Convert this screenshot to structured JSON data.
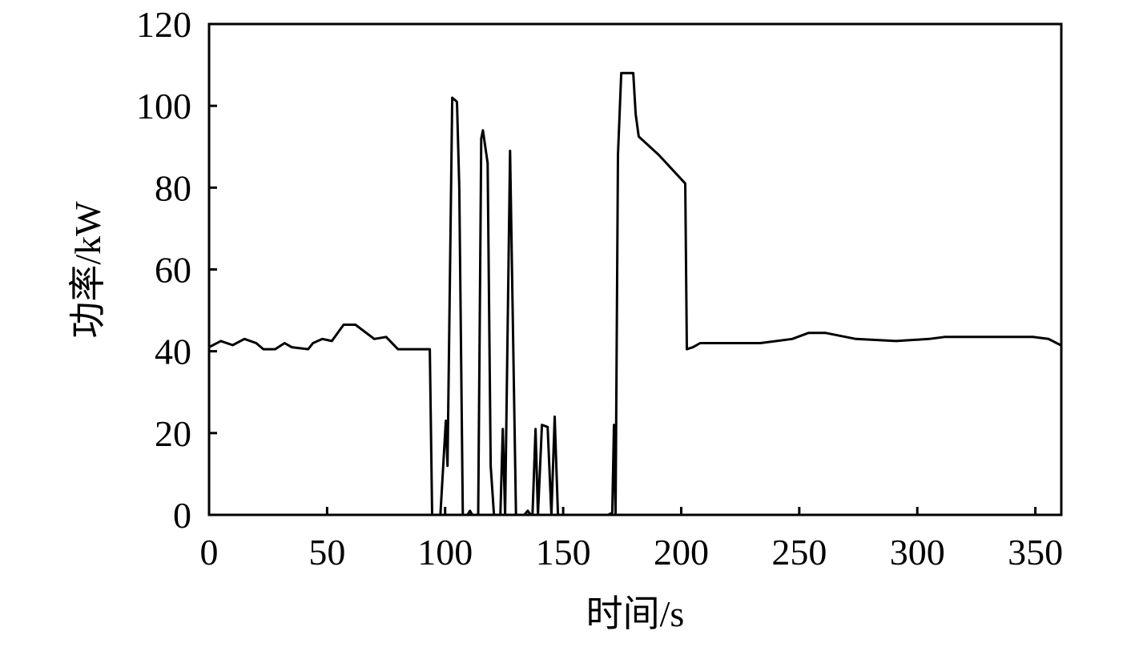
{
  "chart_data": {
    "type": "line",
    "xlabel": "时间/s",
    "ylabel": "功率/kW",
    "xlim": [
      0,
      361
    ],
    "ylim": [
      0,
      120
    ],
    "xticks": [
      0,
      50,
      100,
      150,
      200,
      250,
      300,
      350
    ],
    "yticks": [
      0,
      20,
      40,
      60,
      80,
      100,
      120
    ],
    "color": "#000000",
    "x": [
      0,
      5,
      10,
      15,
      20,
      23,
      28,
      32,
      35,
      42,
      44,
      48,
      52,
      57,
      62,
      70,
      75,
      80,
      88,
      93.5,
      94.5,
      98,
      100.3,
      101,
      103,
      105,
      106,
      107.5,
      109.5,
      110.5,
      111.5,
      114,
      115.3,
      116,
      118,
      119.3,
      120.7,
      123.4,
      124.4,
      125.4,
      127.5,
      129,
      130,
      133.5,
      135,
      136.3,
      137,
      138.3,
      139.3,
      141,
      143.4,
      145,
      146.4,
      147.8,
      169,
      170.8,
      171.5,
      172.2,
      173.2,
      174.6,
      179.7,
      180.7,
      182,
      190.5,
      201.7,
      202.4,
      205,
      208,
      216.6,
      233.5,
      247,
      254,
      261,
      274,
      291,
      305,
      311.5,
      332,
      349,
      355.6,
      360.7
    ],
    "values": [
      41,
      42.5,
      41.5,
      43,
      42,
      40.5,
      40.5,
      42,
      41,
      40.5,
      42,
      43,
      42.5,
      46.5,
      46.5,
      43,
      43.5,
      40.5,
      40.5,
      40.5,
      0,
      0,
      23,
      12,
      102,
      101,
      80,
      0,
      0,
      1,
      0,
      0,
      92,
      94,
      86,
      12,
      0,
      0,
      21,
      0,
      89,
      36,
      0,
      0,
      1,
      0,
      0,
      21,
      0,
      22,
      21.5,
      0,
      24,
      0,
      0,
      0.5,
      22,
      0,
      88,
      108,
      108,
      98,
      92.5,
      88,
      81,
      40.5,
      41,
      42,
      42,
      42,
      43,
      44.5,
      44.5,
      43,
      42.5,
      43,
      43.5,
      43.5,
      43.5,
      43,
      41.5
    ]
  }
}
